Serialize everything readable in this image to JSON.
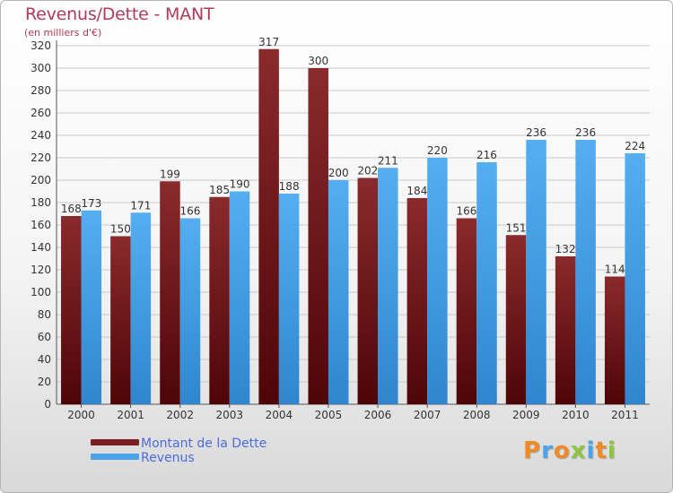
{
  "chart_data": {
    "type": "bar",
    "title": "Revenus/Dette - MANT",
    "subtitle": "(en milliers d'€)",
    "categories": [
      "2000",
      "2001",
      "2002",
      "2003",
      "2004",
      "2005",
      "2006",
      "2007",
      "2008",
      "2009",
      "2010",
      "2011"
    ],
    "series": [
      {
        "name": "Montant de la Dette",
        "color": "#7a1f22",
        "values": [
          168,
          150,
          199,
          185,
          317,
          300,
          202,
          184,
          166,
          151,
          132,
          114
        ]
      },
      {
        "name": "Revenus",
        "color": "#4aa3e6",
        "values": [
          173,
          171,
          166,
          190,
          188,
          200,
          211,
          220,
          216,
          236,
          236,
          224
        ]
      }
    ],
    "ylim": [
      0,
      320
    ],
    "yticks": [
      0,
      20,
      40,
      60,
      80,
      100,
      120,
      140,
      160,
      180,
      200,
      220,
      240,
      260,
      280,
      300,
      320
    ],
    "grid": true,
    "legend_position": "bottom-left"
  },
  "branding": {
    "logo_letters": [
      "P",
      "r",
      "o",
      "x",
      "i",
      "t",
      "i"
    ],
    "logo_colors": [
      "#f08a24",
      "#4aa3e6",
      "#f08a24",
      "#8dc63f",
      "#4aa3e6",
      "#f08a24",
      "#8dc63f"
    ]
  }
}
